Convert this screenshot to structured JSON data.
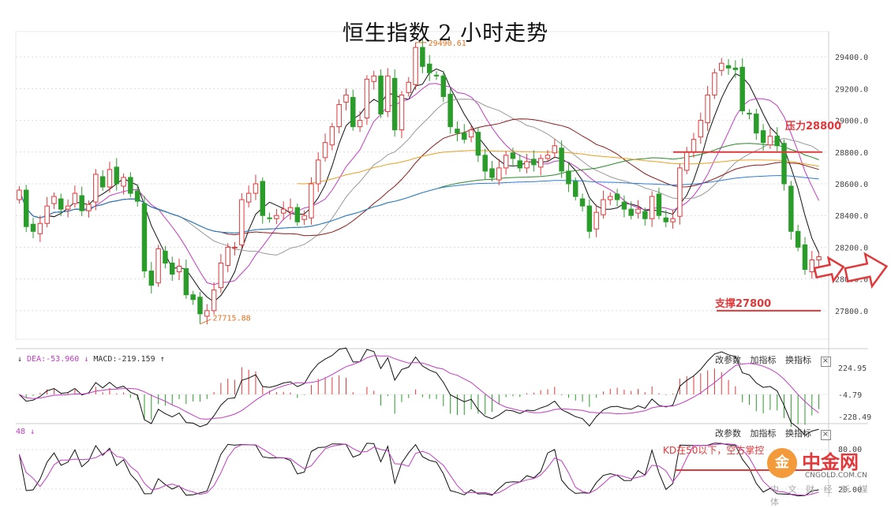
{
  "title": "恒生指数 2 小时走势",
  "chart_data": {
    "type": "candlestick",
    "title": "恒生指数 2 小时走势",
    "price_axis": {
      "ylim": [
        27620,
        29560
      ],
      "ticks": [
        "29400.0",
        "29200.0",
        "29000.0",
        "28800.0",
        "28600.0",
        "28400.0",
        "28200.0",
        "28000.0",
        "27800.0"
      ]
    },
    "high_label": "29490.61",
    "low_label": "27715.88",
    "closes": [
      28560,
      28330,
      28300,
      28350,
      28460,
      28520,
      28440,
      28460,
      28540,
      28430,
      28470,
      28660,
      28580,
      28690,
      28600,
      28640,
      28540,
      28490,
      28050,
      27960,
      28190,
      28100,
      28030,
      28080,
      27900,
      27870,
      27780,
      27800,
      27930,
      28100,
      28200,
      28200,
      28500,
      28540,
      28600,
      28400,
      28380,
      28400,
      28440,
      28450,
      28360,
      28400,
      28600,
      28750,
      28860,
      28960,
      29100,
      29160,
      28960,
      29000,
      29260,
      29280,
      29040,
      29280,
      28940,
      29160,
      29240,
      29460,
      29340,
      29300,
      29280,
      29150,
      28960,
      28920,
      28880,
      28940,
      28780,
      28680,
      28640,
      28700,
      28780,
      28760,
      28700,
      28740,
      28720,
      28760,
      28780,
      28840,
      28680,
      28600,
      28520,
      28460,
      28300,
      28420,
      28500,
      28520,
      28500,
      28440,
      28400,
      28440,
      28380,
      28520,
      28400,
      28360,
      28380,
      28700,
      28800,
      28880,
      29000,
      29160,
      29300,
      29360,
      29330,
      29320,
      29060,
      29040,
      28920,
      28860,
      28900,
      28840,
      28600,
      28300,
      28200,
      28060,
      28120,
      28140
    ],
    "ma_lines": [
      "MA5",
      "MA10",
      "MA20",
      "MA30",
      "MA60",
      "MA120"
    ],
    "support_label": "支撑27800",
    "pressure_label": "压力28800",
    "macd": {
      "dea_label": "DEA:-53.960",
      "macd_label": "MACD:-219.159",
      "ticks": [
        "224.95",
        "-4.79",
        "-228.49"
      ]
    },
    "kdj": {
      "prefix_label": "48",
      "tick_top": "80.00",
      "tick_bottom": "20.00",
      "annotation": "KD在50以下，空方掌控"
    }
  },
  "toolbar": {
    "params": "改参数",
    "add": "加指标",
    "swap": "换指标",
    "close": "×"
  },
  "colors": {
    "up": "#e0393b",
    "down": "#2a9c2a",
    "accent": "#e0393b"
  },
  "watermark": {
    "logo_char": "金",
    "brand": "中金网",
    "domain": "CNGOLD.COM.CN",
    "footer": "中 文 财 经 新 媒 体"
  }
}
